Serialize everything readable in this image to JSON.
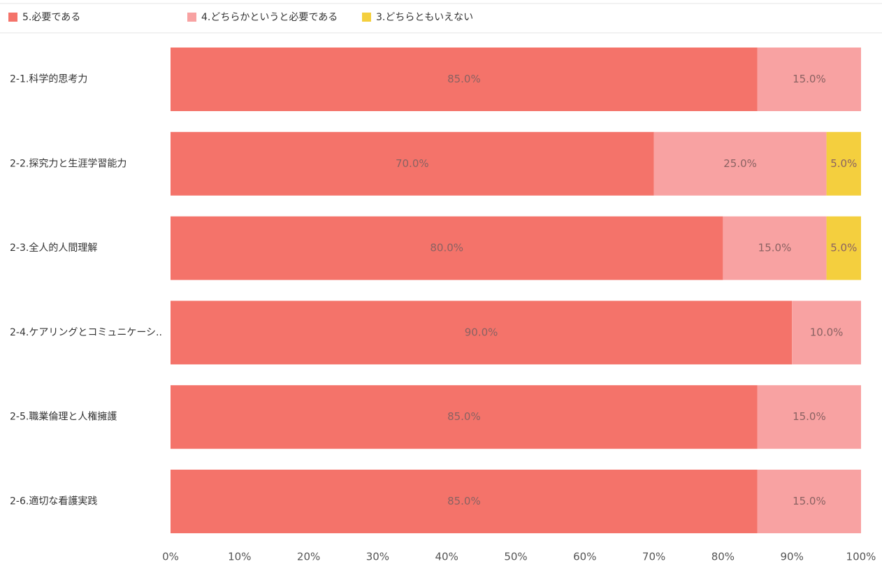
{
  "chart_data": {
    "type": "stacked-bar-horizontal",
    "categories": [
      "2-1.科学的思考力",
      "2-2.探究力と生涯学習能力",
      "2-3.全人的人間理解",
      "2-4.ケアリングとコミュニケーシ..",
      "2-5.職業倫理と人権擁護",
      "2-6.適切な看護実践"
    ],
    "series": [
      {
        "name": "5.必要である",
        "color": "#f4736a",
        "values": [
          85,
          70,
          80,
          90,
          85,
          85
        ],
        "value_labels": [
          "85.0%",
          "70.0%",
          "80.0%",
          "90.0%",
          "85.0%",
          "85.0%"
        ]
      },
      {
        "name": "4.どちらかというと必要である",
        "color": "#f8a2a2",
        "values": [
          15,
          25,
          15,
          10,
          15,
          15
        ],
        "value_labels": [
          "15.0%",
          "25.0%",
          "15.0%",
          "10.0%",
          "15.0%",
          "15.0%"
        ]
      },
      {
        "name": "3.どちらともいえない",
        "color": "#f4cf3e",
        "values": [
          null,
          5,
          5,
          null,
          null,
          null
        ],
        "value_labels": [
          null,
          "5.0%",
          "5.0%",
          null,
          null,
          null
        ]
      }
    ],
    "xlim": [
      0,
      100
    ],
    "xticks": [
      {
        "value": 0,
        "label": "0%"
      },
      {
        "value": 10,
        "label": "10%"
      },
      {
        "value": 20,
        "label": "20%"
      },
      {
        "value": 30,
        "label": "30%"
      },
      {
        "value": 40,
        "label": "40%"
      },
      {
        "value": 50,
        "label": "50%"
      },
      {
        "value": 60,
        "label": "60%"
      },
      {
        "value": 70,
        "label": "70%"
      },
      {
        "value": 80,
        "label": "80%"
      },
      {
        "value": 90,
        "label": "90%"
      },
      {
        "value": 100,
        "label": "100%"
      }
    ]
  }
}
